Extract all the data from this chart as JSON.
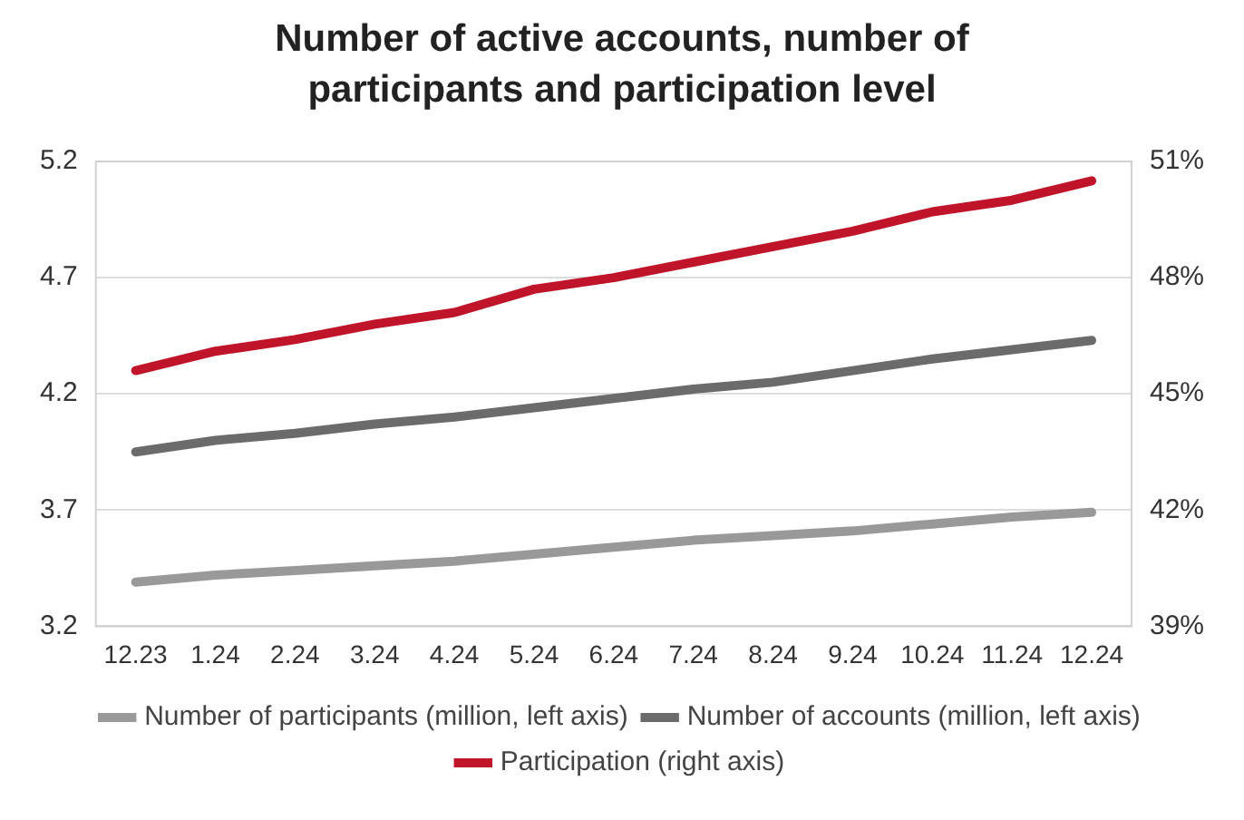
{
  "chart_data": {
    "type": "line",
    "title": "Number of active accounts, number of participants and participation level",
    "categories": [
      "12.23",
      "1.24",
      "2.24",
      "3.24",
      "4.24",
      "5.24",
      "6.24",
      "7.24",
      "8.24",
      "9.24",
      "10.24",
      "11.24",
      "12.24"
    ],
    "series": [
      {
        "name": "Number of participants (million, left axis)",
        "color": "#999999",
        "values": [
          3.39,
          3.42,
          3.44,
          3.46,
          3.48,
          3.51,
          3.54,
          3.57,
          3.59,
          3.61,
          3.64,
          3.67,
          3.69
        ]
      },
      {
        "name": "Number of accounts (million, left axis)",
        "color": "#6b6b6b",
        "values": [
          3.95,
          4.0,
          4.03,
          4.07,
          4.1,
          4.14,
          4.18,
          4.22,
          4.25,
          4.3,
          4.35,
          4.39,
          4.43
        ]
      },
      {
        "name": "Participation (right axis)",
        "color": "#c0142a",
        "axis": "y2",
        "values": [
          45.6,
          46.1,
          46.4,
          46.8,
          47.1,
          47.7,
          48.0,
          48.4,
          48.8,
          49.2,
          49.7,
          50.0,
          50.5
        ]
      }
    ],
    "ylim": [
      3.2,
      5.2
    ],
    "yticks": [
      3.2,
      3.7,
      4.2,
      4.7,
      5.2
    ],
    "y2lim": [
      39,
      51
    ],
    "y2ticks": [
      {
        "value": 39,
        "label": "39%"
      },
      {
        "value": 42,
        "label": "42%"
      },
      {
        "value": 45,
        "label": "45%"
      },
      {
        "value": 48,
        "label": "48%"
      },
      {
        "value": 51,
        "label": "51%"
      }
    ],
    "grid": "y",
    "legend": "bottom",
    "marker": "none",
    "line_style": "solid"
  }
}
